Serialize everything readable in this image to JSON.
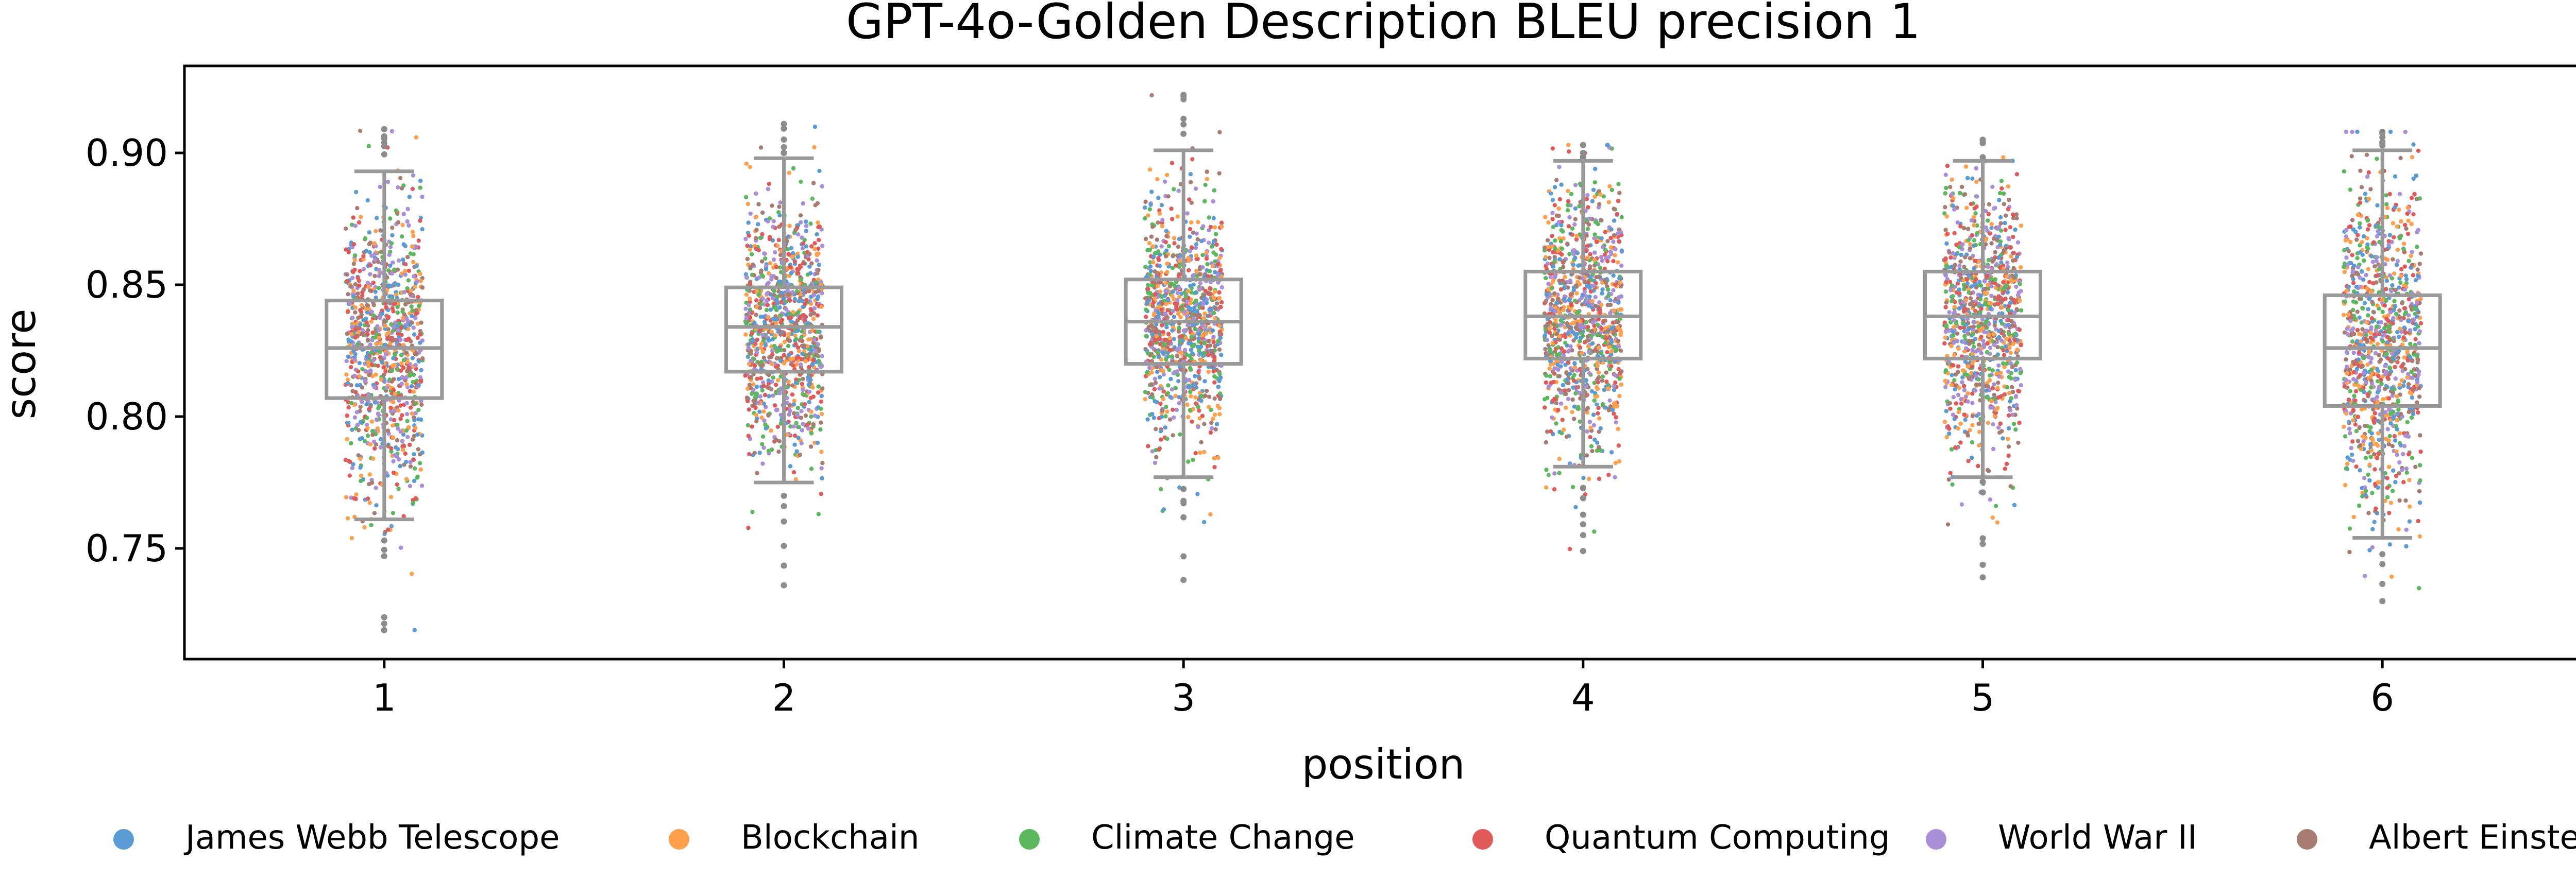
{
  "chart_data": {
    "type": "box+strip",
    "title": "GPT-4o-Golden Description BLEU precision 1",
    "xlabel": "position",
    "ylabel": "score",
    "categories": [
      "1",
      "2",
      "3",
      "4",
      "5",
      "6"
    ],
    "ylim": [
      0.708,
      0.933
    ],
    "yticks": [
      0.75,
      0.8,
      0.85,
      0.9
    ],
    "ytick_labels": [
      "0.75",
      "0.80",
      "0.85",
      "0.90"
    ],
    "grid": false,
    "legend_position": "bottom",
    "box_color": "#999999",
    "series": [
      {
        "name": "James Webb Telescope",
        "color": "#5b9bd5"
      },
      {
        "name": "Blockchain",
        "color": "#ffa04d"
      },
      {
        "name": "Climate Change",
        "color": "#5cb85c"
      },
      {
        "name": "Quantum Computing",
        "color": "#e05a5a"
      },
      {
        "name": "World War II",
        "color": "#a98fd8"
      },
      {
        "name": "Albert Einstein",
        "color": "#a97c72"
      }
    ],
    "boxes": [
      {
        "position": "1",
        "whisker_low": 0.761,
        "q1": 0.807,
        "median": 0.826,
        "q3": 0.844,
        "whisker_high": 0.893,
        "min": 0.719,
        "max": 0.909,
        "n_points": 1000
      },
      {
        "position": "2",
        "whisker_low": 0.775,
        "q1": 0.817,
        "median": 0.834,
        "q3": 0.849,
        "whisker_high": 0.898,
        "min": 0.736,
        "max": 0.911,
        "n_points": 1000
      },
      {
        "position": "3",
        "whisker_low": 0.777,
        "q1": 0.82,
        "median": 0.836,
        "q3": 0.852,
        "whisker_high": 0.901,
        "min": 0.738,
        "max": 0.922,
        "n_points": 1000
      },
      {
        "position": "4",
        "whisker_low": 0.781,
        "q1": 0.822,
        "median": 0.838,
        "q3": 0.855,
        "whisker_high": 0.897,
        "min": 0.749,
        "max": 0.903,
        "n_points": 1000
      },
      {
        "position": "5",
        "whisker_low": 0.777,
        "q1": 0.822,
        "median": 0.838,
        "q3": 0.855,
        "whisker_high": 0.897,
        "min": 0.739,
        "max": 0.905,
        "n_points": 1000
      },
      {
        "position": "6",
        "whisker_low": 0.754,
        "q1": 0.804,
        "median": 0.826,
        "q3": 0.846,
        "whisker_high": 0.901,
        "min": 0.73,
        "max": 0.908,
        "n_points": 1000
      }
    ]
  }
}
